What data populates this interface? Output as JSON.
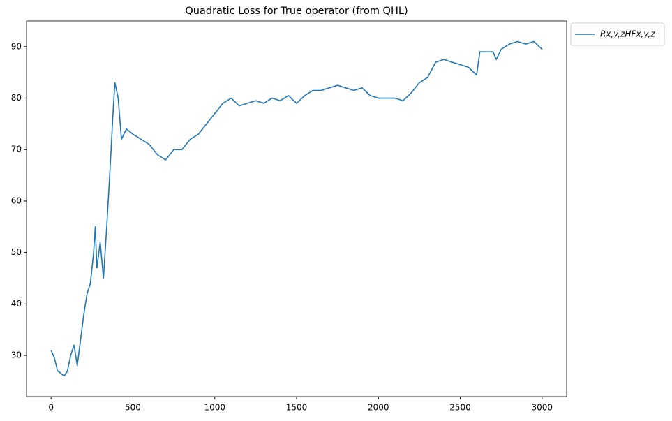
{
  "chart_data": {
    "type": "line",
    "title": "Quadratic Loss for True operator (from QHL)",
    "x": [
      0,
      20,
      40,
      60,
      80,
      100,
      120,
      140,
      160,
      180,
      200,
      220,
      240,
      260,
      270,
      280,
      300,
      320,
      340,
      360,
      380,
      390,
      410,
      430,
      460,
      500,
      550,
      600,
      650,
      700,
      750,
      800,
      850,
      900,
      950,
      1000,
      1050,
      1100,
      1150,
      1200,
      1250,
      1300,
      1350,
      1400,
      1450,
      1500,
      1550,
      1600,
      1650,
      1700,
      1750,
      1800,
      1850,
      1900,
      1950,
      2000,
      2050,
      2100,
      2150,
      2200,
      2250,
      2300,
      2350,
      2400,
      2450,
      2500,
      2550,
      2600,
      2620,
      2650,
      2700,
      2720,
      2750,
      2800,
      2850,
      2900,
      2950,
      3000
    ],
    "series": [
      {
        "name": "Rx,y,zHFx,y,z",
        "color": "#1f77b4",
        "values": [
          31,
          29.5,
          27,
          26.5,
          26,
          27,
          30,
          32,
          28,
          33,
          38,
          42,
          44,
          50,
          55,
          47,
          52,
          45,
          55,
          66,
          78,
          83,
          80,
          72,
          74,
          73,
          72,
          71,
          69,
          68,
          70,
          70,
          72,
          73,
          75,
          77,
          79,
          80,
          78.5,
          79,
          79.5,
          79,
          80,
          79.5,
          80.5,
          79,
          80.5,
          81.5,
          81.5,
          82,
          82.5,
          82,
          81.5,
          82,
          80.5,
          80,
          80,
          80,
          79.5,
          81,
          83,
          84,
          87,
          87.5,
          87,
          86.5,
          86,
          84.5,
          89,
          89,
          89,
          87.5,
          89.5,
          90.5,
          91,
          90.5,
          91,
          89.5
        ]
      }
    ],
    "xlim": [
      -150,
      3150
    ],
    "ylim": [
      22,
      95
    ],
    "xticks": [
      0,
      500,
      1000,
      1500,
      2000,
      2500,
      3000
    ],
    "yticks": [
      30,
      40,
      50,
      60,
      70,
      80,
      90
    ],
    "grid": false,
    "legend": "outside upper right"
  }
}
